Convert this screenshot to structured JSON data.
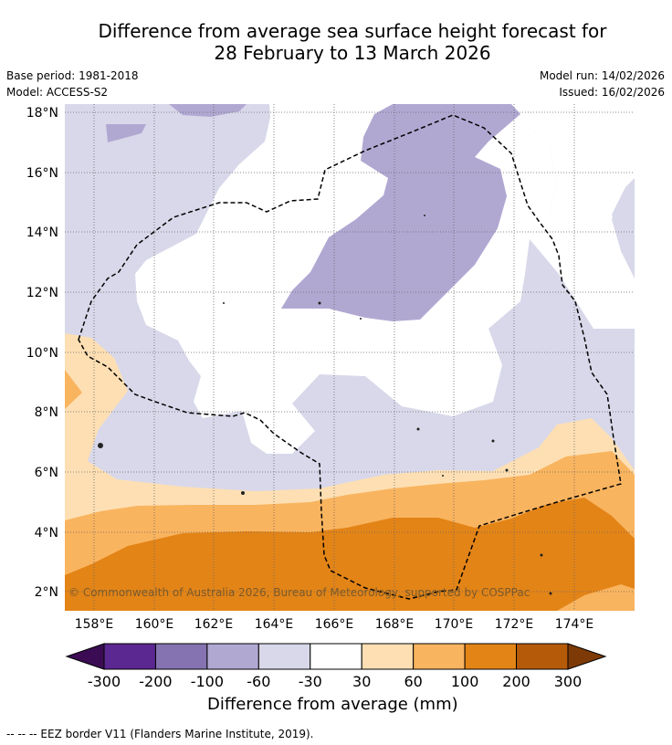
{
  "title_line1": "Difference from average sea surface height forecast for",
  "title_line2": "28 February to 13 March 2026",
  "meta": {
    "base_period": "Base period: 1981-2018",
    "model": "Model: ACCESS-S2",
    "model_run": "Model run: 14/02/2026",
    "issued": "Issued: 16/02/2026"
  },
  "lat_labels": [
    "18°N",
    "16°N",
    "14°N",
    "12°N",
    "10°N",
    "8°N",
    "6°N",
    "4°N",
    "2°N"
  ],
  "lon_labels": [
    "158°E",
    "160°E",
    "162°E",
    "164°E",
    "166°E",
    "168°E",
    "170°E",
    "172°E",
    "174°E"
  ],
  "copyright": "© Commonwealth of Australia 2026, Bureau of Meteorology, supported by COSPPac",
  "colorbar": {
    "ticks": [
      "-300",
      "-200",
      "-100",
      "-60",
      "-30",
      "30",
      "60",
      "100",
      "200",
      "300"
    ],
    "colors": [
      "#3b0c53",
      "#5b2791",
      "#8473b0",
      "#b1a8d2",
      "#d8d8ea",
      "#ffffff",
      "#fddfb3",
      "#f9b45f",
      "#e38417",
      "#b45a08",
      "#7e3a06"
    ],
    "title": "Difference from average (mm)"
  },
  "footer": "--  --  -- EEZ border V11 (Flanders Marine Institute, 2019)."
}
